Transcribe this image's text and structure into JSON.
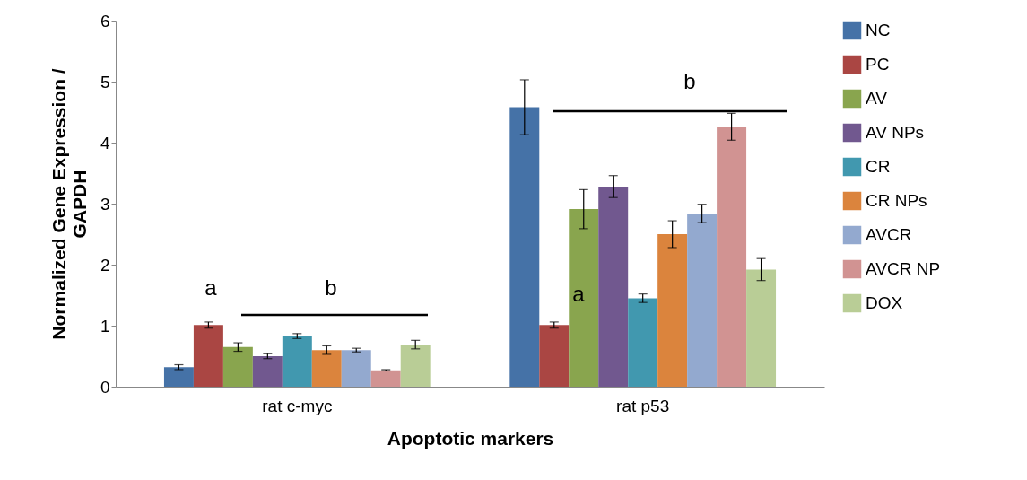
{
  "chart_data": {
    "type": "bar",
    "xlabel": "Apoptotic markers",
    "ylabel": "Normalized Gene Expression / GAPDH",
    "categories": [
      "rat c-myc",
      "rat p53"
    ],
    "series": [
      {
        "name": "NC",
        "color": "#4572a7",
        "values": [
          0.32,
          4.58
        ],
        "errors": [
          0.04,
          0.45
        ]
      },
      {
        "name": "PC",
        "color": "#aa4643",
        "values": [
          1.01,
          1.01
        ],
        "errors": [
          0.05,
          0.05
        ]
      },
      {
        "name": "AV",
        "color": "#89a54e",
        "values": [
          0.65,
          2.91
        ],
        "errors": [
          0.07,
          0.32
        ]
      },
      {
        "name": "AV NPs",
        "color": "#71588f",
        "values": [
          0.5,
          3.28
        ],
        "errors": [
          0.04,
          0.18
        ]
      },
      {
        "name": "CR",
        "color": "#4198af",
        "values": [
          0.83,
          1.45
        ],
        "errors": [
          0.04,
          0.07
        ]
      },
      {
        "name": "CR NPs",
        "color": "#db843d",
        "values": [
          0.6,
          2.5
        ],
        "errors": [
          0.07,
          0.22
        ]
      },
      {
        "name": "AVCR",
        "color": "#93a9cf",
        "values": [
          0.6,
          2.84
        ],
        "errors": [
          0.03,
          0.15
        ]
      },
      {
        "name": "AVCR NP",
        "color": "#d19392",
        "values": [
          0.27,
          4.26
        ],
        "errors": [
          0.01,
          0.22
        ]
      },
      {
        "name": "DOX",
        "color": "#b9cd96",
        "values": [
          0.69,
          1.92
        ],
        "errors": [
          0.07,
          0.18
        ]
      }
    ],
    "ylim": [
      0,
      6
    ],
    "yticks": [
      0,
      1,
      2,
      3,
      4,
      5,
      6
    ],
    "legend": "right",
    "annotations": [
      "a",
      "b",
      "a",
      "b"
    ]
  }
}
